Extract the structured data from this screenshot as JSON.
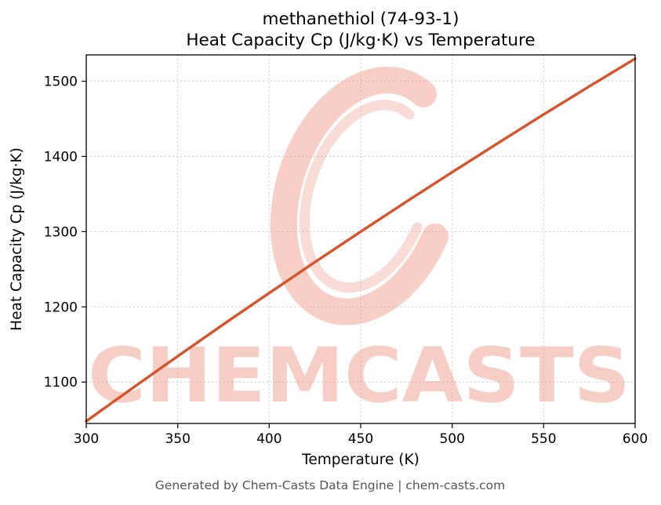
{
  "page": {
    "footer": "Generated by Chem-Casts Data Engine | chem-casts.com",
    "footer_color": "#555555",
    "background": "#ffffff"
  },
  "chart_data": {
    "type": "line",
    "title_line1": "methanethiol (74-93-1)",
    "title_line2": "Heat Capacity Cp (J/kg·K) vs Temperature",
    "xlabel": "Temperature (K)",
    "ylabel": "Heat Capacity Cp (J/kg·K)",
    "xlim": [
      300,
      600
    ],
    "ylim": [
      1045,
      1535
    ],
    "x_ticks": [
      300,
      350,
      400,
      450,
      500,
      550,
      600
    ],
    "y_ticks": [
      1100,
      1200,
      1300,
      1400,
      1500
    ],
    "grid": true,
    "grid_color": "#c9c9c9",
    "axis_color": "#000000",
    "line_color": "#d9532a",
    "watermark_text": "CHEMCASTS",
    "watermark_color": "#eb8c78",
    "series": [
      {
        "name": "Heat Capacity Cp (J/kg·K)",
        "x": [
          300,
          325,
          350,
          375,
          400,
          425,
          450,
          475,
          500,
          525,
          550,
          575,
          600
        ],
        "y": [
          1048,
          1091.5,
          1134.4,
          1176.8,
          1218.4,
          1259.5,
          1300,
          1339.9,
          1379.1,
          1417.7,
          1455.8,
          1493.2,
          1530
        ]
      }
    ]
  }
}
